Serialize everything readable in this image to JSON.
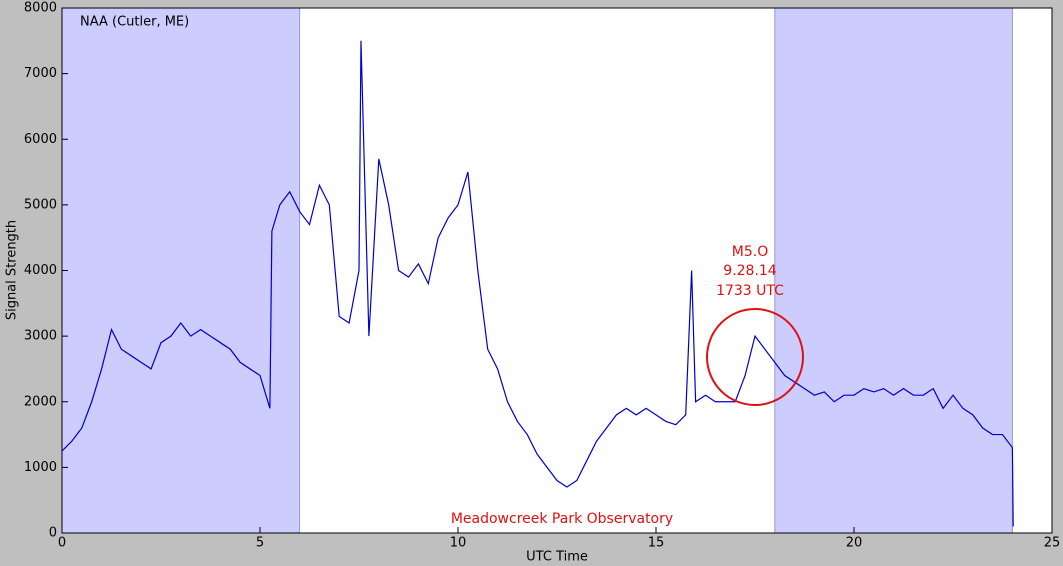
{
  "chart_data": {
    "type": "line",
    "title": "NAA (Cutler, ME)",
    "xlabel": "UTC Time",
    "ylabel": "Signal Strength",
    "annotations": [
      "M5.O",
      "9.28.14",
      "1733 UTC",
      "Meadowcreek Park Observatory"
    ],
    "x": [
      0,
      0.25,
      0.5,
      0.75,
      1,
      1.25,
      1.5,
      1.75,
      2,
      2.25,
      2.5,
      2.75,
      3,
      3.25,
      3.5,
      3.75,
      4,
      4.25,
      4.5,
      4.75,
      5,
      5.25,
      5.3,
      5.5,
      5.75,
      6,
      6.25,
      6.5,
      6.75,
      7,
      7.25,
      7.5,
      7.55,
      7.75,
      8,
      8.25,
      8.5,
      8.75,
      9,
      9.25,
      9.5,
      9.75,
      10,
      10.25,
      10.5,
      10.75,
      11,
      11.25,
      11.5,
      11.75,
      12,
      12.25,
      12.5,
      12.75,
      13,
      13.25,
      13.5,
      13.75,
      14,
      14.25,
      14.5,
      14.75,
      15,
      15.25,
      15.5,
      15.75,
      15.9,
      16,
      16.25,
      16.5,
      16.75,
      17,
      17.25,
      17.5,
      17.75,
      18,
      18.25,
      18.5,
      18.75,
      19,
      19.25,
      19.5,
      19.75,
      20,
      20.25,
      20.5,
      20.75,
      21,
      21.25,
      21.5,
      21.75,
      22,
      22.25,
      22.5,
      22.75,
      23,
      23.25,
      23.5,
      23.75,
      24,
      24.02
    ],
    "values": [
      1250,
      1400,
      1600,
      2000,
      2500,
      3100,
      2800,
      2700,
      2600,
      2500,
      2900,
      3000,
      3200,
      3000,
      3100,
      3000,
      2900,
      2800,
      2600,
      2500,
      2400,
      1900,
      4600,
      5000,
      5200,
      4900,
      4700,
      5300,
      5000,
      3300,
      3200,
      4000,
      7500,
      3000,
      5700,
      5000,
      4000,
      3900,
      4100,
      3800,
      4500,
      4800,
      5000,
      5500,
      4000,
      2800,
      2500,
      2000,
      1700,
      1500,
      1200,
      1000,
      800,
      700,
      800,
      1100,
      1400,
      1600,
      1800,
      1900,
      1800,
      1900,
      1800,
      1700,
      1650,
      1800,
      4000,
      2000,
      2100,
      2000,
      2000,
      2000,
      2400,
      3000,
      2800,
      2600,
      2400,
      2300,
      2200,
      2100,
      2150,
      2000,
      2100,
      2100,
      2200,
      2150,
      2200,
      2100,
      2200,
      2100,
      2100,
      2200,
      1900,
      2100,
      1900,
      1800,
      1600,
      1500,
      1500,
      1300,
      100
    ],
    "color": "#0000cc",
    "shaded_spans": [
      [
        0,
        6
      ],
      [
        18,
        24
      ]
    ],
    "span_color": "#ccccff",
    "xlim": [
      0,
      25
    ],
    "xticks": [
      0,
      5,
      10,
      15,
      20,
      25
    ],
    "ylim": [
      0,
      8000
    ],
    "yticks": [
      0,
      1000,
      2000,
      3000,
      4000,
      5000,
      6000,
      7000,
      8000
    ]
  }
}
